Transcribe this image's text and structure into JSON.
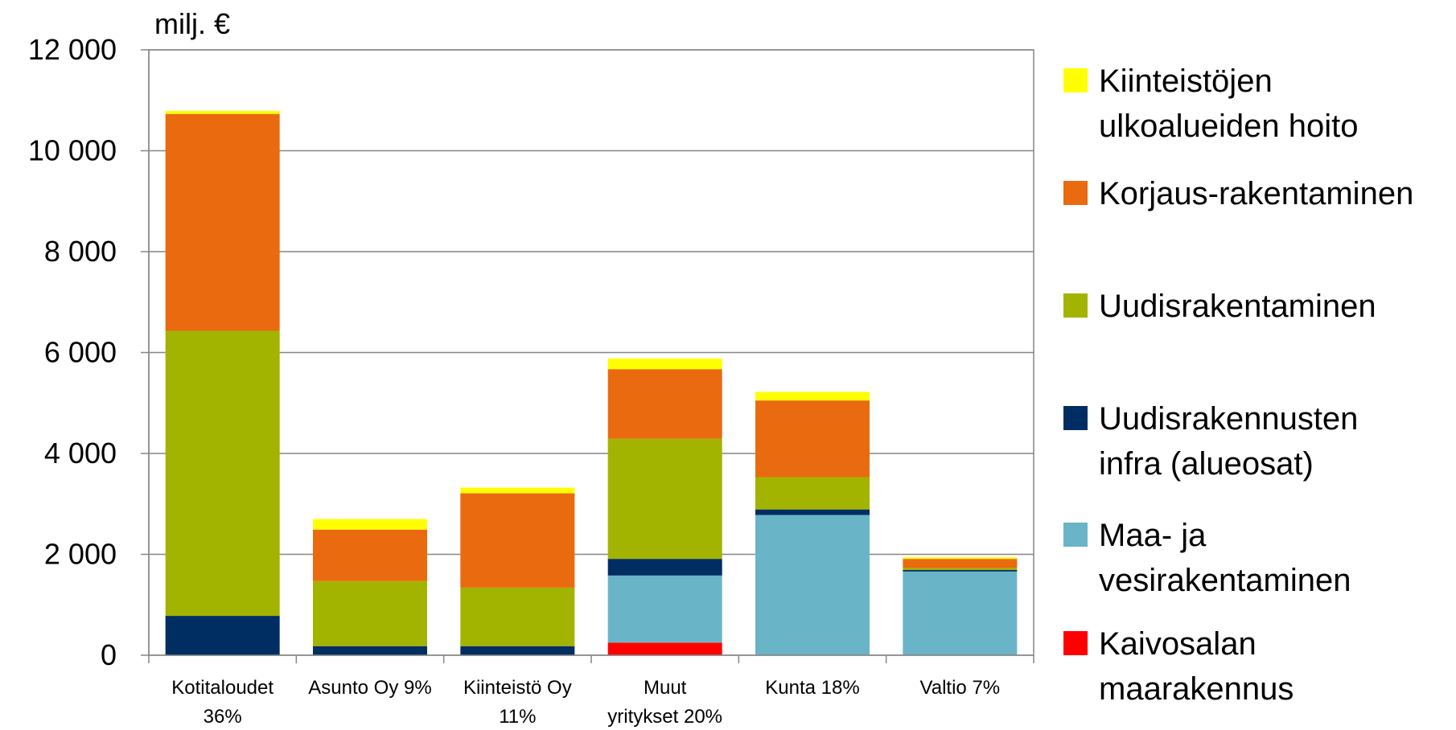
{
  "chart_data": {
    "type": "bar",
    "stacked": true,
    "unit_label": "milj. €",
    "ylim": [
      0,
      12000
    ],
    "yticks": [
      0,
      2000,
      4000,
      6000,
      8000,
      10000,
      12000
    ],
    "ytick_labels": [
      "0",
      "2 000",
      "4 000",
      "6 000",
      "8 000",
      "10 000",
      "12 000"
    ],
    "grid": true,
    "legend_position": "right",
    "categories": [
      [
        "Kotitaloudet",
        "36%"
      ],
      [
        "Asunto Oy 9%"
      ],
      [
        "Kiinteistö Oy",
        "11%"
      ],
      [
        "Muut",
        "yritykset 20%"
      ],
      [
        "Kunta 18%"
      ],
      [
        "Valtio 7%"
      ]
    ],
    "series": [
      {
        "name": "Kaivosalan maarakennus",
        "legend_lines": [
          "Kaivosalan",
          "maarakennus"
        ],
        "color": "#ff0000",
        "values": [
          0,
          0,
          0,
          250,
          0,
          0
        ]
      },
      {
        "name": "Maa- ja vesirakentaminen",
        "legend_lines": [
          "Maa- ja",
          "vesirakentaminen"
        ],
        "color": "#6ab4c8",
        "values": [
          0,
          0,
          0,
          1330,
          2780,
          1660
        ]
      },
      {
        "name": "Uudisrakennusten infra (alueosat)",
        "legend_lines": [
          "Uudisrakennusten",
          "infra (alueosat)"
        ],
        "color": "#002d62",
        "values": [
          780,
          180,
          180,
          330,
          110,
          30
        ]
      },
      {
        "name": "Uudisrakentaminen",
        "legend_lines": [
          "Uudisrakentaminen"
        ],
        "color": "#a2b300",
        "values": [
          5650,
          1290,
          1160,
          2380,
          640,
          40
        ]
      },
      {
        "name": "Korjaus-rakentaminen",
        "legend_lines": [
          "Korjaus-rakentaminen"
        ],
        "color": "#ea6a10",
        "values": [
          4300,
          1020,
          1870,
          1380,
          1520,
          180
        ]
      },
      {
        "name": "Kiinteistöjen ulkoalueiden hoito",
        "legend_lines": [
          "Kiinteistöjen",
          "ulkoalueiden hoito"
        ],
        "color": "#ffff00",
        "values": [
          60,
          210,
          110,
          210,
          170,
          30
        ]
      }
    ]
  }
}
